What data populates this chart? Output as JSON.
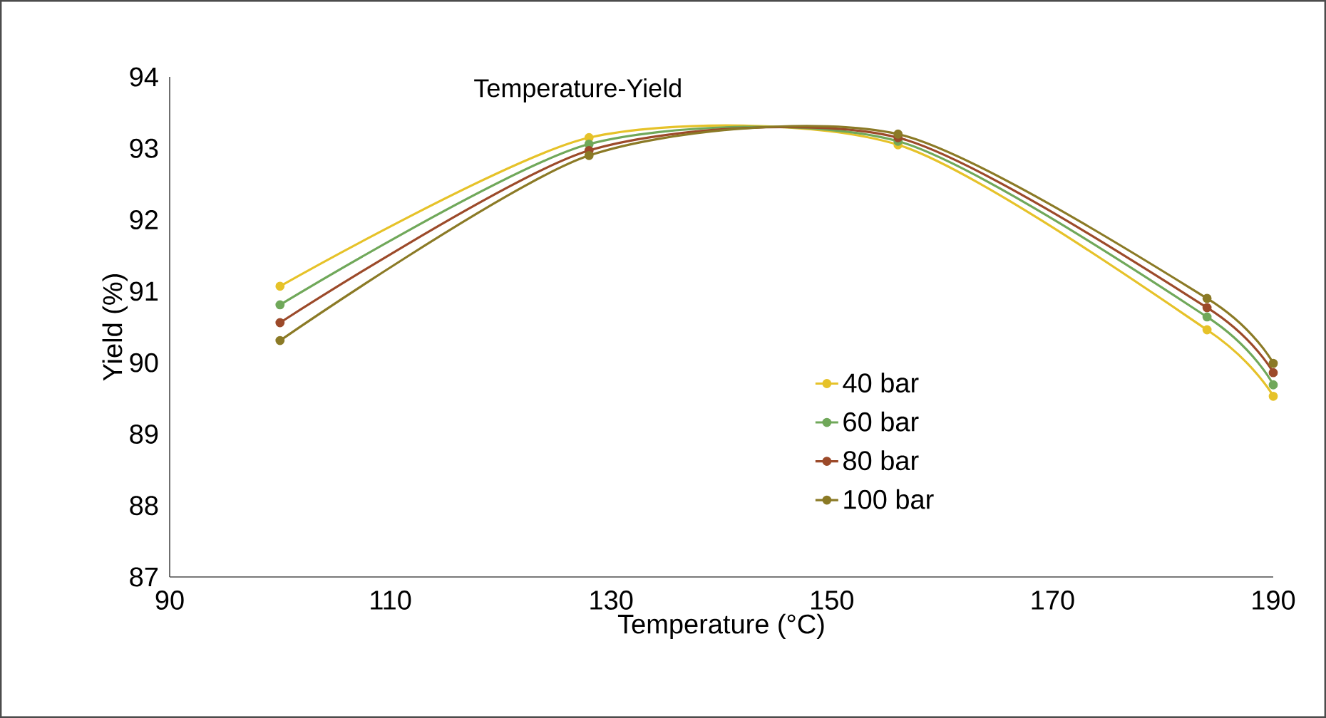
{
  "chart_data": {
    "type": "line",
    "title": "Temperature-Yield",
    "xlabel": "Temperature (°C)",
    "ylabel": "Yield (%)",
    "x": [
      100,
      128,
      156,
      184,
      190
    ],
    "series": [
      {
        "name": "40 bar",
        "color": "#e6c229",
        "values": [
          91.07,
          93.15,
          93.05,
          90.46,
          89.53
        ]
      },
      {
        "name": "60 bar",
        "color": "#70a85a",
        "values": [
          90.81,
          93.06,
          93.1,
          90.64,
          89.69
        ]
      },
      {
        "name": "80 bar",
        "color": "#9c4a2a",
        "values": [
          90.56,
          92.97,
          93.15,
          90.77,
          89.86
        ]
      },
      {
        "name": "100 bar",
        "color": "#8b7a26",
        "values": [
          90.31,
          92.9,
          93.2,
          90.9,
          89.99
        ]
      }
    ],
    "xlim": [
      90,
      190
    ],
    "xticks": [
      90,
      110,
      130,
      150,
      170,
      190
    ],
    "ylim": [
      87,
      94
    ],
    "yticks": [
      87,
      88,
      89,
      90,
      91,
      92,
      93,
      94
    ],
    "grid": false,
    "legend": "right",
    "marker": "circle",
    "line_style": "solid"
  }
}
